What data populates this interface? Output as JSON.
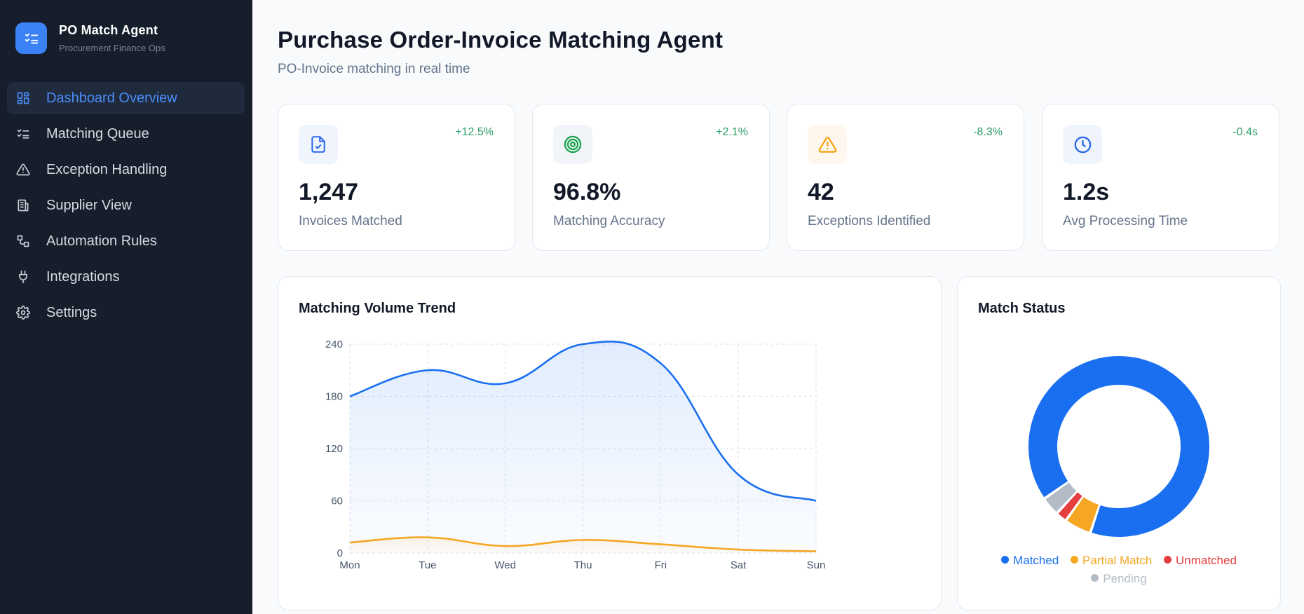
{
  "brand": {
    "name": "PO Match Agent",
    "subtitle": "Procurement Finance Ops",
    "logo_icon": "checklist-icon"
  },
  "sidebar": {
    "items": [
      {
        "label": "Dashboard Overview",
        "icon": "dashboard-icon",
        "active": true
      },
      {
        "label": "Matching Queue",
        "icon": "checklist-icon",
        "active": false
      },
      {
        "label": "Exception Handling",
        "icon": "warning-icon",
        "active": false
      },
      {
        "label": "Supplier View",
        "icon": "building-icon",
        "active": false
      },
      {
        "label": "Automation Rules",
        "icon": "workflow-icon",
        "active": false
      },
      {
        "label": "Integrations",
        "icon": "plug-icon",
        "active": false
      },
      {
        "label": "Settings",
        "icon": "gear-icon",
        "active": false
      }
    ]
  },
  "header": {
    "title": "Purchase Order-Invoice Matching Agent",
    "subtitle": "PO-Invoice matching in real time"
  },
  "stats": [
    {
      "value": "1,247",
      "label": "Invoices Matched",
      "delta": "+12.5%",
      "icon": "file-check-icon",
      "color": "#2563eb",
      "bg": "#eff4fd"
    },
    {
      "value": "96.8%",
      "label": "Matching Accuracy",
      "delta": "+2.1%",
      "icon": "target-icon",
      "color": "#16a34a",
      "bg": "#f1f5f9"
    },
    {
      "value": "42",
      "label": "Exceptions Identified",
      "delta": "-8.3%",
      "icon": "warning-icon",
      "color": "#f59e0b",
      "bg": "#fff7ed"
    },
    {
      "value": "1.2s",
      "label": "Avg Processing Time",
      "delta": "-0.4s",
      "icon": "clock-icon",
      "color": "#2563eb",
      "bg": "#eff4fd"
    }
  ],
  "chart_data": [
    {
      "type": "area",
      "title": "Matching Volume Trend",
      "categories": [
        "Mon",
        "Tue",
        "Wed",
        "Thu",
        "Fri",
        "Sat",
        "Sun"
      ],
      "yticks": [
        0,
        60,
        120,
        180,
        240
      ],
      "ylim": [
        0,
        240
      ],
      "grid": true,
      "series": [
        {
          "values": [
            180,
            210,
            195,
            240,
            218,
            90,
            60
          ],
          "color": "#1a6ff0"
        },
        {
          "values": [
            12,
            18,
            8,
            15,
            10,
            4,
            2
          ],
          "color": "#f5a623"
        }
      ]
    },
    {
      "type": "pie",
      "title": "Match Status",
      "categories": [
        "Matched",
        "Partial Match",
        "Unmatched",
        "Pending"
      ],
      "values": [
        1120,
        60,
        25,
        42
      ],
      "colors": [
        "#1a6ff0",
        "#f5a623",
        "#e53e3e",
        "#b3bcc6"
      ],
      "legend": "bottom"
    }
  ]
}
